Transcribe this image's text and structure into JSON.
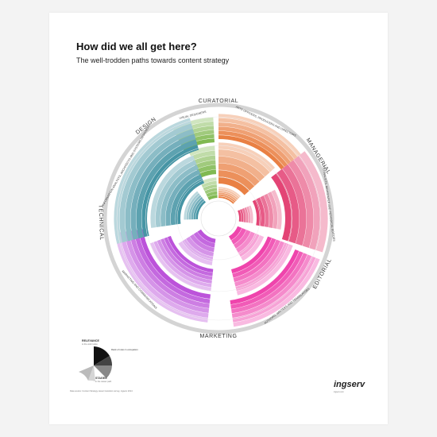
{
  "header": {
    "title": "How did we all get here?",
    "subtitle": "The well-trodden paths towards content strategy"
  },
  "categories": [
    {
      "label": "CURATORIAL"
    },
    {
      "label": "MANAGERIAL"
    },
    {
      "label": "EDITORIAL"
    },
    {
      "label": "MARKETING"
    },
    {
      "label": "TECHNICAL"
    },
    {
      "label": "DESIGN"
    }
  ],
  "occupations": {
    "visual_designers": "VISUAL DESIGNERS",
    "arts_officers": "ARTS OFFICERS, PRODUCERS AND DIRECTORS",
    "journalists": "JOURNALISTS, NEWSPAPER AND PERIODICAL EDITORS",
    "authors": "AUTHORS, WRITERS AND TRANSLATORS",
    "marketing": "MARKETING AND COMMUNICATIONS",
    "information_analysts": "INFORMATION ANALYSTS, ARCHITECTS AND SYSTEMS DESIGNERS"
  },
  "colors": {
    "curatorial": "#e8793a",
    "managerial": "#e23a6e",
    "editorial": "#ee3aa8",
    "marketing": "#b84ad8",
    "technical": "#3c8fa0",
    "design": "#79b548"
  },
  "legend": {
    "relevance_label": "RELEVANCE",
    "relevance_sub": "to the work today",
    "note": "Rank of roles in occupation",
    "stages_label": "STAGES",
    "stages_sub": "in the career path"
  },
  "footer": {
    "left": "Data source: Content Strategy career transition survey, ingserv 2014",
    "brand": "ingserv",
    "right": "ingserv.com"
  }
}
